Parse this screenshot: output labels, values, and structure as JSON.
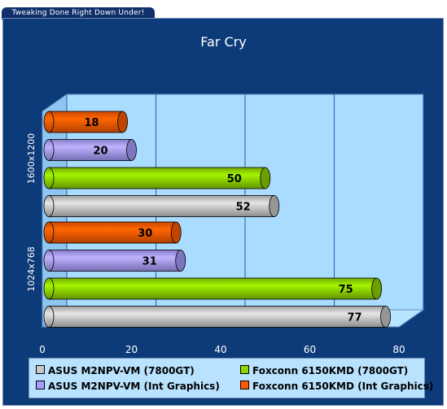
{
  "banner": {
    "text": "Tweaking Done Right Down Under!"
  },
  "chart_data": {
    "type": "bar",
    "orientation": "horizontal",
    "title": "Far Cry",
    "categories": [
      "1600x1200",
      "1024x768"
    ],
    "series": [
      {
        "name": "ASUS M2NPV-VM (7800GT)",
        "color": "#c8c8c8",
        "values": [
          52,
          77
        ]
      },
      {
        "name": "Foxconn 6150KMD (7800GT)",
        "color": "#8fd400",
        "values": [
          50,
          75
        ]
      },
      {
        "name": "ASUS M2NPV-VM (Int Graphics)",
        "color": "#a79cff",
        "values": [
          20,
          31
        ]
      },
      {
        "name": "Foxconn 6150KMD (Int Graphics)",
        "color": "#ff5a00",
        "values": [
          18,
          30
        ]
      }
    ],
    "xlim": [
      0,
      80
    ],
    "xticks": [
      "0",
      "20",
      "40",
      "60",
      "80"
    ],
    "grid": true,
    "legend_position": "bottom"
  }
}
